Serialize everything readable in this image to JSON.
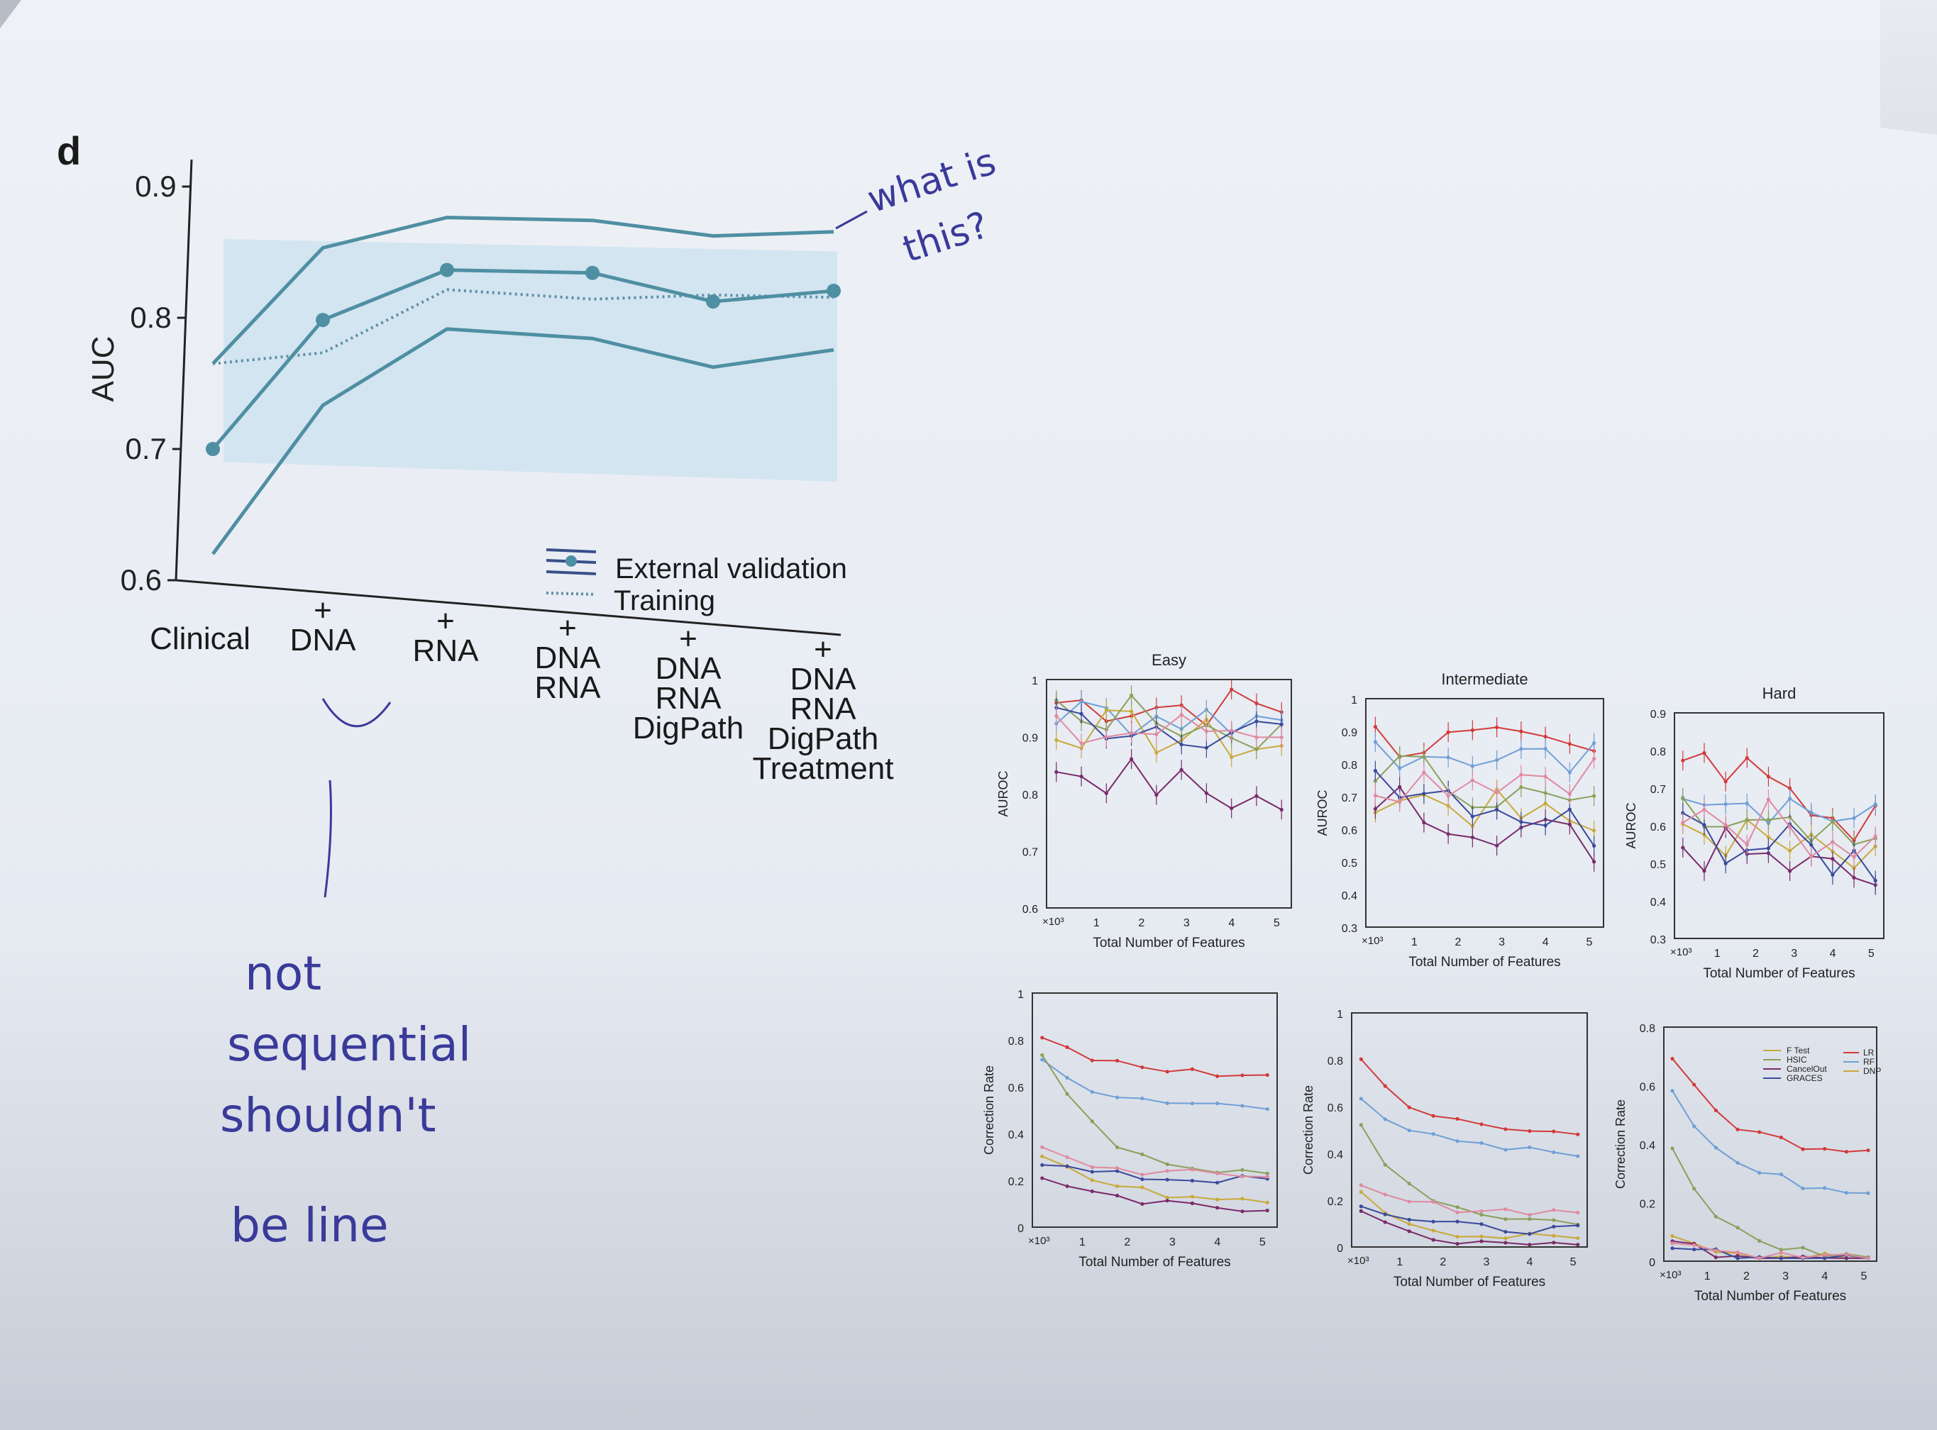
{
  "main_figure": {
    "panel_label": "d",
    "y_axis_label": "AUC",
    "y_ticks": [
      "0.9",
      "0.8",
      "0.7",
      "0.6"
    ],
    "x_categories": [
      [
        "Clinical"
      ],
      [
        "+",
        "DNA"
      ],
      [
        "+",
        "RNA"
      ],
      [
        "+",
        "DNA",
        "RNA"
      ],
      [
        "+",
        "DNA",
        "RNA",
        "DigPath"
      ],
      [
        "+",
        "DNA",
        "RNA",
        "DigPath",
        "Treatment"
      ]
    ],
    "legend": {
      "external": "External validation",
      "training": "Training"
    },
    "colors": {
      "line": "#4f8fa3",
      "band": "#cfe3ee",
      "training": "#5d8fa8"
    }
  },
  "chart_data": [
    {
      "type": "line",
      "title": "",
      "xlabel": "",
      "ylabel": "AUC",
      "ylim": [
        0.6,
        0.92
      ],
      "categories": [
        "Clinical",
        "+DNA",
        "+RNA",
        "+DNA RNA",
        "+DNA RNA DigPath",
        "+DNA RNA DigPath Treatment"
      ],
      "series": [
        {
          "name": "External validation",
          "values": [
            0.7,
            0.8,
            0.84,
            0.84,
            0.82,
            0.83
          ]
        },
        {
          "name": "Training",
          "values": [
            0.765,
            0.775,
            0.825,
            0.82,
            0.825,
            0.825
          ]
        }
      ],
      "upper_bound": [
        0.765,
        0.855,
        0.88,
        0.88,
        0.87,
        0.875
      ],
      "lower_bound": [
        0.62,
        0.735,
        0.795,
        0.79,
        0.77,
        0.785
      ]
    },
    {
      "type": "line",
      "title": "Easy",
      "xlabel": "Total Number of Features",
      "ylabel": "AUROC",
      "ylim": [
        0.6,
        1
      ],
      "x": [
        0.5,
        1,
        1.5,
        2,
        2.5,
        3,
        3.5,
        4,
        4.5,
        5
      ]
    },
    {
      "type": "line",
      "title": "Intermediate",
      "xlabel": "Total Number of Features",
      "ylabel": "AUROC",
      "ylim": [
        0.3,
        1
      ],
      "x": [
        0.5,
        1,
        1.5,
        2,
        2.5,
        3,
        3.5,
        4,
        4.5,
        5
      ]
    },
    {
      "type": "line",
      "title": "Hard",
      "xlabel": "Total Number of Features",
      "ylabel": "AUROC",
      "ylim": [
        0.3,
        0.9
      ],
      "x": [
        0.5,
        1,
        1.5,
        2,
        2.5,
        3,
        3.5,
        4,
        4.5,
        5
      ]
    },
    {
      "type": "line",
      "title": "",
      "xlabel": "Total Number of Features",
      "ylabel": "Correction Rate",
      "ylim": [
        0,
        1
      ],
      "x": [
        0.5,
        1,
        1.5,
        2,
        2.5,
        3,
        3.5,
        4,
        4.5,
        5
      ]
    },
    {
      "type": "line",
      "title": "",
      "xlabel": "Total Number of Features",
      "ylabel": "Correction Rate",
      "ylim": [
        0,
        1
      ],
      "x": [
        0.5,
        1,
        1.5,
        2,
        2.5,
        3,
        3.5,
        4,
        4.5,
        5
      ]
    },
    {
      "type": "line",
      "title": "",
      "xlabel": "Total Number of Features",
      "ylabel": "Correction Rate",
      "ylim": [
        0,
        0.8
      ],
      "x": [
        0.5,
        1,
        1.5,
        2,
        2.5,
        3,
        3.5,
        4,
        4.5,
        5
      ]
    }
  ],
  "small_panels": [
    {
      "title": "Easy",
      "xlabel": "Total Number of Features",
      "ylabel": "AUROC",
      "yticks": [
        "1",
        "0.9",
        "0.8",
        "0.7",
        "0.6"
      ],
      "xticks": [
        "1",
        "2",
        "3",
        "4",
        "5"
      ],
      "xmult": "×10³"
    },
    {
      "title": "Intermediate",
      "xlabel": "Total Number of Features",
      "ylabel": "AUROC",
      "yticks": [
        "1",
        "0.9",
        "0.8",
        "0.7",
        "0.6",
        "0.5",
        "0.4",
        "0.3"
      ],
      "xticks": [
        "1",
        "2",
        "3",
        "4",
        "5"
      ],
      "xmult": "×10³"
    },
    {
      "title": "Hard",
      "xlabel": "Total Number of Features",
      "ylabel": "AUROC",
      "yticks": [
        "0.9",
        "0.8",
        "0.7",
        "0.6",
        "0.5",
        "0.4",
        "0.3"
      ],
      "xticks": [
        "1",
        "2",
        "3",
        "4",
        "5"
      ],
      "xmult": "×10³"
    },
    {
      "title": "",
      "xlabel": "Total Number of Features",
      "ylabel": "Correction Rate",
      "yticks": [
        "1",
        "0.8",
        "0.6",
        "0.4",
        "0.2",
        "0"
      ],
      "xticks": [
        "1",
        "2",
        "3",
        "4",
        "5"
      ],
      "xmult": "×10³"
    },
    {
      "title": "",
      "xlabel": "Total Number of Features",
      "ylabel": "Correction Rate",
      "yticks": [
        "1",
        "0.8",
        "0.6",
        "0.4",
        "0.2",
        "0"
      ],
      "xticks": [
        "1",
        "2",
        "3",
        "4",
        "5"
      ],
      "xmult": "×10³"
    },
    {
      "title": "",
      "xlabel": "Total Number of Features",
      "ylabel": "Correction Rate",
      "yticks": [
        "0.8",
        "0.6",
        "0.4",
        "0.2",
        "0"
      ],
      "xticks": [
        "1",
        "2",
        "3",
        "4",
        "5"
      ],
      "xmult": "×10³"
    }
  ],
  "small_legend": {
    "left": [
      "F Test",
      "HSIC",
      "CancelOut",
      "GRACES"
    ],
    "right": [
      "LR",
      "RF",
      "DNP"
    ]
  },
  "series_colors": [
    "#d23a3a",
    "#6f9fd6",
    "#c9a93a",
    "#8aa05a",
    "#7a2a6a",
    "#3a4a9a",
    "#e08aa0"
  ],
  "annotations": {
    "top_note": [
      "what is",
      "this?"
    ],
    "bottom_note": [
      "not",
      "sequential",
      "shouldn't",
      "be line"
    ]
  }
}
